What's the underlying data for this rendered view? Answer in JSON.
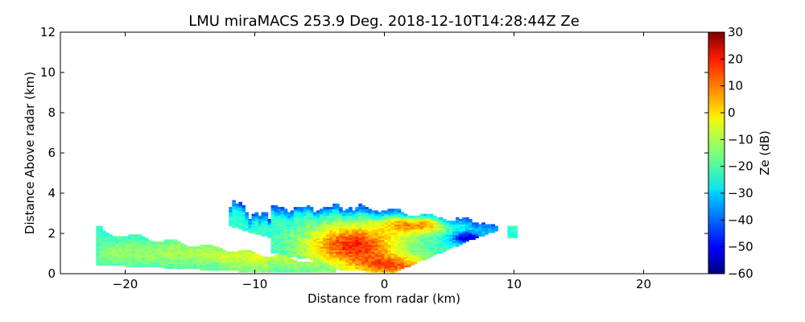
{
  "chart_data": {
    "type": "heatmap",
    "title": "LMU miraMACS 253.9 Deg. 2018-12-10T14:28:44Z  Ze",
    "xlabel": "Distance from radar (km)",
    "ylabel": "Distance Above radar  (km)",
    "xlim": [
      -25,
      25
    ],
    "ylim": [
      0,
      12
    ],
    "xticks": [
      -20,
      -10,
      0,
      10,
      20
    ],
    "xtick_labels": [
      "−20",
      "−10",
      "0",
      "10",
      "20"
    ],
    "yticks": [
      0,
      2,
      4,
      6,
      8,
      10,
      12
    ],
    "ytick_labels": [
      "0",
      "2",
      "4",
      "6",
      "8",
      "10",
      "12"
    ],
    "colorbar": {
      "label": "Ze (dB)",
      "range": [
        -60,
        30
      ],
      "colormap": "jet",
      "ticks": [
        -60,
        -50,
        -40,
        -30,
        -20,
        -10,
        0,
        10,
        20,
        30
      ],
      "tick_labels": [
        "−60",
        "−50",
        "−40",
        "−30",
        "−20",
        "−10",
        "0",
        "10",
        "20",
        "30"
      ]
    },
    "echo_regions": [
      {
        "name": "main-cloud-body",
        "x": [
          -12,
          10
        ],
        "y": [
          0,
          3.8
        ],
        "ze_typical": [
          -30,
          20
        ]
      },
      {
        "name": "core-near-radar",
        "x": [
          -7,
          5
        ],
        "y": [
          0,
          2.8
        ],
        "ze_typical": [
          5,
          20
        ]
      },
      {
        "name": "lower-trailing-band",
        "x": [
          -22,
          -9
        ],
        "y": [
          0.3,
          2.3
        ],
        "ze_typical": [
          -25,
          -10
        ]
      }
    ]
  }
}
